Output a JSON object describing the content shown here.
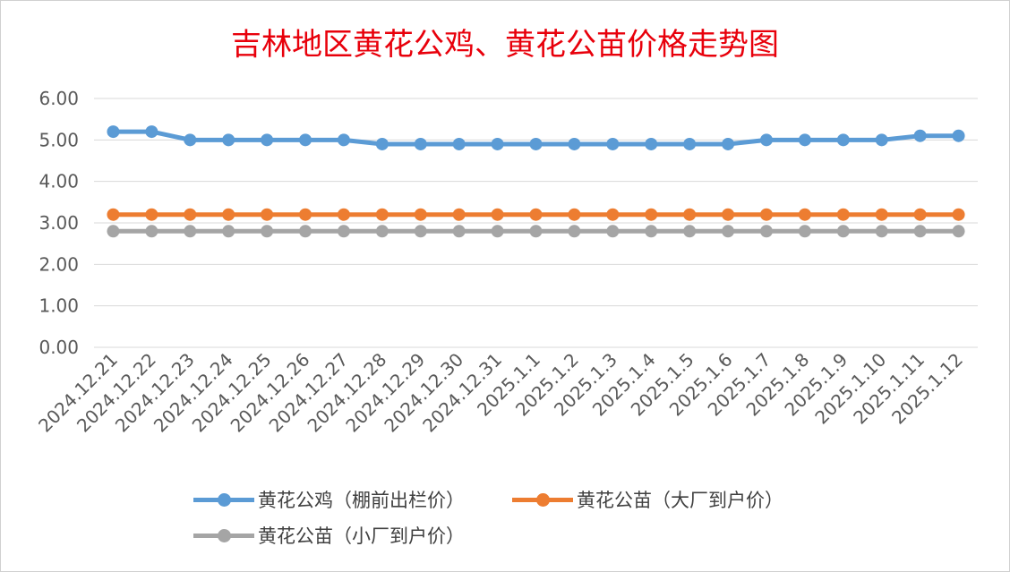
{
  "chart_data": {
    "type": "line",
    "title": "吉林地区黄花公鸡、黄花公苗价格走势图",
    "categories": [
      "2024.12.21",
      "2024.12.22",
      "2024.12.23",
      "2024.12.24",
      "2024.12.25",
      "2024.12.26",
      "2024.12.27",
      "2024.12.28",
      "2024.12.29",
      "2024.12.30",
      "2024.12.31",
      "2025.1.1",
      "2025.1.2",
      "2025.1.3",
      "2025.1.4",
      "2025.1.5",
      "2025.1.6",
      "2025.1.7",
      "2025.1.8",
      "2025.1.9",
      "2025.1.10",
      "2025.1.11",
      "2025.1.12"
    ],
    "y_ticks": [
      "0.00",
      "1.00",
      "2.00",
      "3.00",
      "4.00",
      "5.00",
      "6.00"
    ],
    "ylim": [
      0,
      6
    ],
    "grid": "horizontal",
    "legend_position": "bottom",
    "series": [
      {
        "name": "黄花公鸡（棚前出栏价）",
        "color": "#5b9bd5",
        "values": [
          5.2,
          5.2,
          5.0,
          5.0,
          5.0,
          5.0,
          5.0,
          4.9,
          4.9,
          4.9,
          4.9,
          4.9,
          4.9,
          4.9,
          4.9,
          4.9,
          4.9,
          5.0,
          5.0,
          5.0,
          5.0,
          5.1,
          5.1
        ]
      },
      {
        "name": "黄花公苗（大厂到户价）",
        "color": "#ed7d31",
        "values": [
          3.2,
          3.2,
          3.2,
          3.2,
          3.2,
          3.2,
          3.2,
          3.2,
          3.2,
          3.2,
          3.2,
          3.2,
          3.2,
          3.2,
          3.2,
          3.2,
          3.2,
          3.2,
          3.2,
          3.2,
          3.2,
          3.2,
          3.2
        ]
      },
      {
        "name": "黄花公苗（小厂到户价）",
        "color": "#a5a5a5",
        "values": [
          2.8,
          2.8,
          2.8,
          2.8,
          2.8,
          2.8,
          2.8,
          2.8,
          2.8,
          2.8,
          2.8,
          2.8,
          2.8,
          2.8,
          2.8,
          2.8,
          2.8,
          2.8,
          2.8,
          2.8,
          2.8,
          2.8,
          2.8
        ]
      }
    ]
  }
}
